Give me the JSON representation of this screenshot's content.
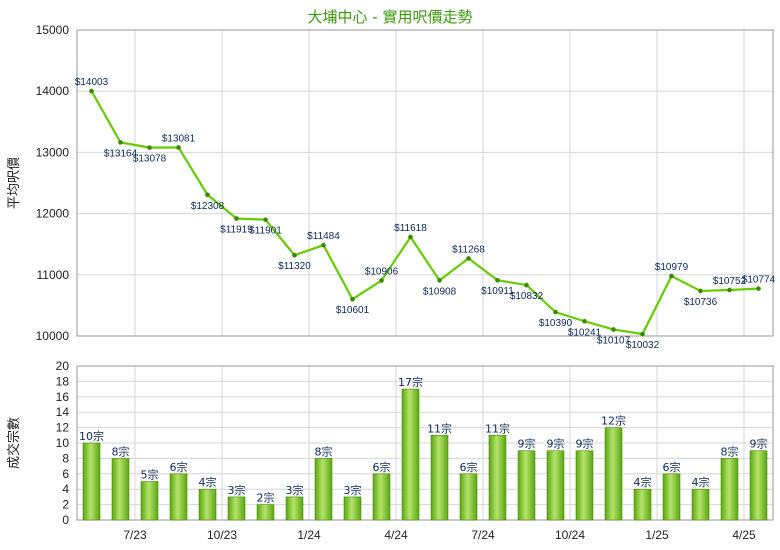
{
  "title": "大埔中心 - 實用呎價走勢",
  "colors": {
    "title": "#3a9a0a",
    "line": "#66cc00",
    "bar": "#77bb22",
    "bar_light": "#c8ec8f",
    "grid": "#d6d6d6",
    "label": "#0b2a5b"
  },
  "chart_data": [
    {
      "type": "line",
      "ylabel": "平均呎價",
      "ylim": [
        10000,
        15000
      ],
      "yticks": [
        10000,
        11000,
        12000,
        13000,
        14000,
        15000
      ],
      "values": [
        14003,
        13164,
        13078,
        13081,
        12308,
        11919,
        11901,
        11320,
        11484,
        10601,
        10906,
        11618,
        10908,
        11268,
        10911,
        10832,
        10390,
        10241,
        10107,
        10032,
        10979,
        10736,
        10752,
        10774
      ],
      "labels": [
        "$14003",
        "$13164",
        "$13078",
        "$13081",
        "$12308",
        "$11919",
        "$11901",
        "$11320",
        "$11484",
        "$10601",
        "$10906",
        "$11618",
        "$10908",
        "$11268",
        "$10911",
        "$10832",
        "$10390",
        "$10241",
        "$10107",
        "$10032",
        "$10979",
        "$10736",
        "$10752",
        "$10774"
      ]
    },
    {
      "type": "bar",
      "ylabel": "成交宗數",
      "ylim": [
        0,
        20
      ],
      "yticks": [
        0,
        2,
        4,
        6,
        8,
        10,
        12,
        14,
        16,
        18,
        20
      ],
      "values": [
        10,
        8,
        5,
        6,
        4,
        3,
        2,
        3,
        8,
        3,
        6,
        17,
        11,
        6,
        11,
        9,
        9,
        9,
        12,
        4,
        6,
        4,
        8,
        9
      ],
      "labels": [
        "10宗",
        "8宗",
        "5宗",
        "6宗",
        "4宗",
        "3宗",
        "2宗",
        "3宗",
        "8宗",
        "3宗",
        "6宗",
        "17宗",
        "11宗",
        "6宗",
        "11宗",
        "9宗",
        "9宗",
        "9宗",
        "12宗",
        "4宗",
        "6宗",
        "4宗",
        "8宗",
        "9宗"
      ],
      "xticks": [
        "7/23",
        "10/23",
        "1/24",
        "4/24",
        "7/24",
        "10/24",
        "1/25",
        "4/25"
      ]
    }
  ]
}
